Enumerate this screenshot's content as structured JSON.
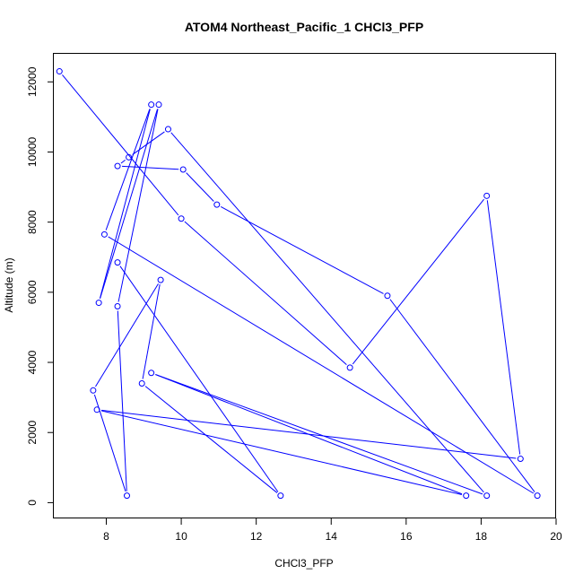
{
  "chart_data": {
    "type": "line",
    "title": "ATOM4 Northeast_Pacific_1 CHCl3_PFP",
    "xlabel": "CHCl3_PFP",
    "ylabel": "Altitude (m)",
    "xlim": [
      6.6,
      20.0
    ],
    "ylim": [
      -450,
      12800
    ],
    "x_ticks": [
      8,
      10,
      12,
      14,
      16,
      18,
      20
    ],
    "y_ticks": [
      0,
      2000,
      4000,
      6000,
      8000,
      10000,
      12000
    ],
    "series": [
      {
        "color": "#0000ff",
        "marker": "open-circle",
        "points": [
          {
            "x": 6.75,
            "y": 12300
          },
          {
            "x": 10.0,
            "y": 8100
          },
          {
            "x": 14.5,
            "y": 3850
          },
          {
            "x": 18.15,
            "y": 8750
          },
          {
            "x": 19.05,
            "y": 1250
          },
          {
            "x": 7.75,
            "y": 2650
          },
          {
            "x": 17.6,
            "y": 200
          },
          {
            "x": 9.2,
            "y": 3700
          },
          {
            "x": 18.15,
            "y": 200
          },
          {
            "x": 9.65,
            "y": 10650
          },
          {
            "x": 8.6,
            "y": 9850
          },
          {
            "x": 8.3,
            "y": 9600
          },
          {
            "x": 10.05,
            "y": 9500
          },
          {
            "x": 10.95,
            "y": 8500
          },
          {
            "x": 15.5,
            "y": 5900
          },
          {
            "x": 19.5,
            "y": 200
          },
          {
            "x": 7.95,
            "y": 7650
          },
          {
            "x": 9.2,
            "y": 11350
          },
          {
            "x": 7.8,
            "y": 5700
          },
          {
            "x": 9.4,
            "y": 11350
          },
          {
            "x": 8.3,
            "y": 5600
          },
          {
            "x": 8.55,
            "y": 200
          },
          {
            "x": 7.65,
            "y": 3200
          },
          {
            "x": 9.45,
            "y": 6350
          },
          {
            "x": 8.95,
            "y": 3400
          },
          {
            "x": 12.65,
            "y": 200
          },
          {
            "x": 8.3,
            "y": 6850
          }
        ]
      }
    ]
  }
}
